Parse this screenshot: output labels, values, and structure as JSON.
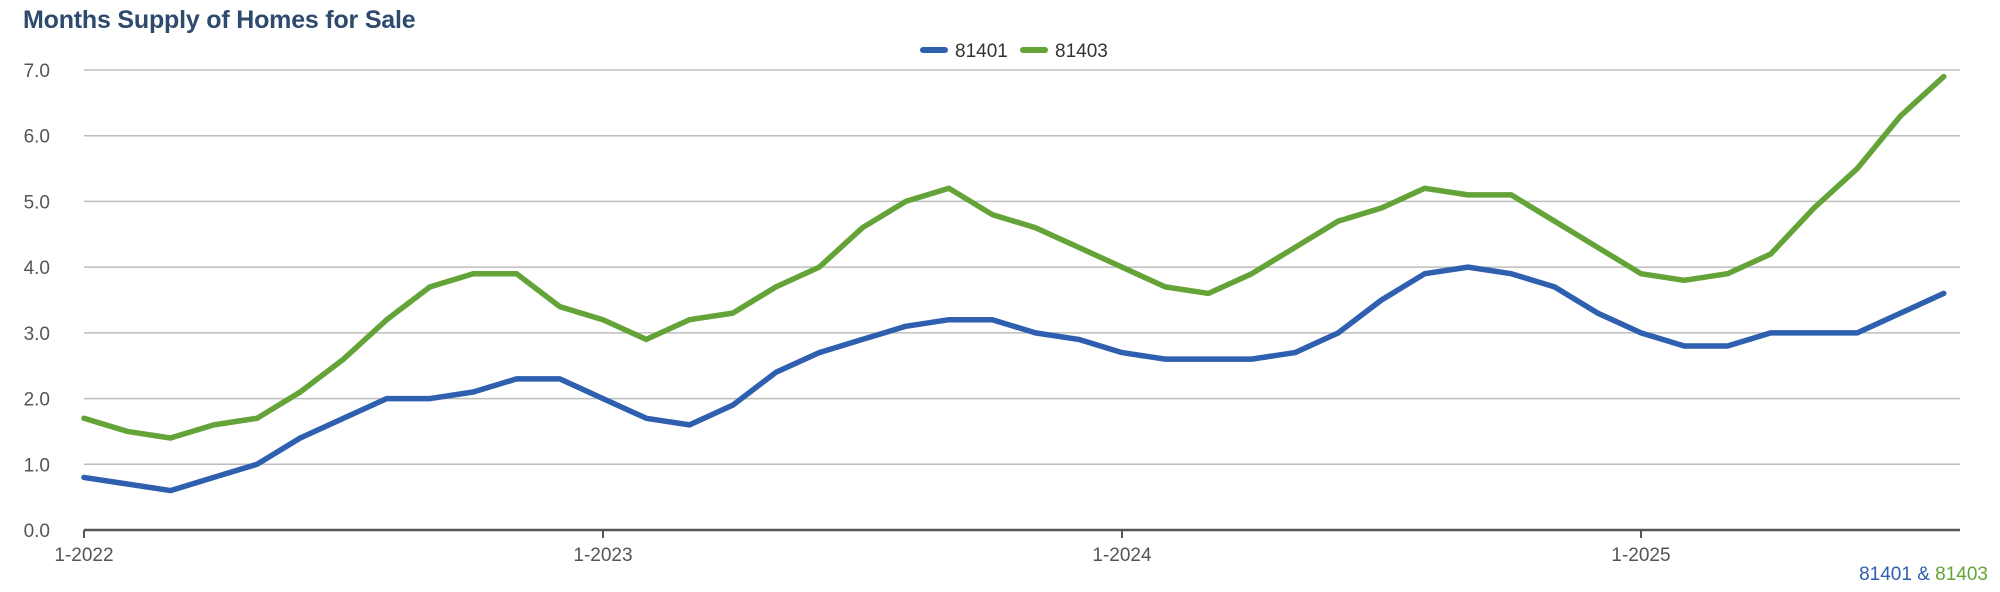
{
  "chart_data": {
    "type": "line",
    "title": "Months Supply of Homes for Sale",
    "xlabel": "",
    "ylabel": "",
    "ylim": [
      0,
      7
    ],
    "y_ticks": [
      "0.0",
      "1.0",
      "2.0",
      "3.0",
      "4.0",
      "5.0",
      "6.0",
      "7.0"
    ],
    "x_tick_labels": [
      "1-2022",
      "1-2023",
      "1-2024",
      "1-2025"
    ],
    "grid": true,
    "legend_position": "top-center",
    "series": [
      {
        "name": "81401",
        "color": "#2f5faf",
        "values": [
          0.8,
          0.7,
          0.6,
          0.8,
          1.0,
          1.4,
          1.7,
          2.0,
          2.0,
          2.1,
          2.3,
          2.3,
          2.0,
          1.7,
          1.6,
          1.9,
          2.4,
          2.7,
          2.9,
          3.1,
          3.2,
          3.2,
          3.0,
          2.9,
          2.7,
          2.6,
          2.6,
          2.6,
          2.7,
          3.0,
          3.5,
          3.9,
          4.0,
          3.9,
          3.7,
          3.3,
          3.0,
          2.8,
          2.8,
          3.0,
          3.0,
          3.0,
          3.3,
          3.6
        ]
      },
      {
        "name": "81403",
        "color": "#64a338",
        "values": [
          1.7,
          1.5,
          1.4,
          1.6,
          1.7,
          2.1,
          2.6,
          3.2,
          3.7,
          3.9,
          3.9,
          3.4,
          3.2,
          2.9,
          3.2,
          3.3,
          3.7,
          4.0,
          4.6,
          5.0,
          5.2,
          4.8,
          4.6,
          4.3,
          4.0,
          3.7,
          3.6,
          3.9,
          4.3,
          4.7,
          4.9,
          5.2,
          5.1,
          5.1,
          4.7,
          4.3,
          3.9,
          3.8,
          3.9,
          4.2,
          4.9,
          5.5,
          6.3,
          6.9
        ]
      }
    ]
  },
  "footer": {
    "left": "81401",
    "separator": " & ",
    "right": "81403"
  }
}
